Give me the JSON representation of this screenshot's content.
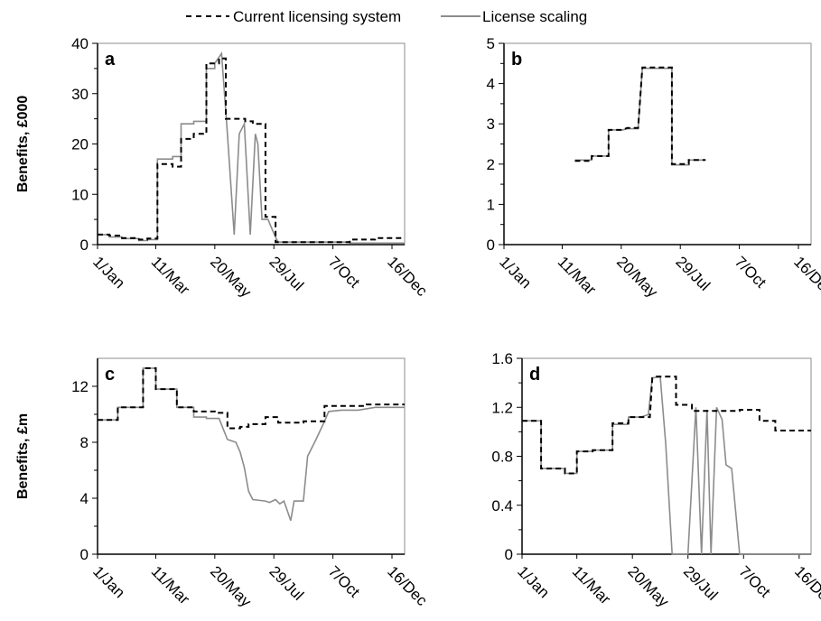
{
  "legend": {
    "current_label": "Current licensing system",
    "scaling_label": "License scaling"
  },
  "colors": {
    "current": "#000000",
    "scaling": "#8c8c8c",
    "axis": "#000000"
  },
  "chart_data": [
    {
      "type": "line",
      "panel": "a",
      "ylabel": "Benefits, £000",
      "xlabel": "",
      "xlim": [
        1,
        365
      ],
      "ylim": [
        0,
        40
      ],
      "yticks": [
        0,
        10,
        20,
        30,
        40
      ],
      "ytick_labels": [
        "0",
        "10",
        "20",
        "30",
        "40"
      ],
      "xticks": [
        1,
        70,
        140,
        210,
        280,
        350
      ],
      "xtick_labels": [
        "1/Jan",
        "11/Mar",
        "20/May",
        "29/Jul",
        "7/Oct",
        "16/Dec"
      ],
      "grid": false,
      "legend_position": "top",
      "series": [
        {
          "name": "Current licensing system",
          "style": "dashed",
          "x": [
            1,
            15,
            15,
            30,
            30,
            50,
            50,
            60,
            60,
            72,
            72,
            90,
            90,
            100,
            100,
            115,
            115,
            130,
            130,
            145,
            145,
            153,
            153,
            176,
            176,
            185,
            185,
            200,
            200,
            212,
            212,
            230,
            230,
            300,
            300,
            330,
            330,
            365
          ],
          "y": [
            2,
            2,
            1.8,
            1.8,
            1.3,
            1.3,
            1,
            1,
            1.2,
            1.2,
            16,
            16,
            15.5,
            15.5,
            21,
            21,
            22,
            22,
            36,
            36,
            37,
            37,
            25,
            25,
            24.5,
            24.5,
            24,
            24,
            5.5,
            5.5,
            0.5,
            0.5,
            0.5,
            0.5,
            1,
            1,
            1.3,
            1.3
          ]
        },
        {
          "name": "License scaling",
          "style": "solid",
          "x": [
            1,
            15,
            15,
            30,
            30,
            50,
            50,
            60,
            60,
            72,
            72,
            90,
            90,
            100,
            100,
            115,
            115,
            130,
            130,
            140,
            140,
            148,
            155,
            163,
            169,
            175,
            182,
            188,
            191,
            196,
            203,
            208,
            212,
            215,
            230,
            300,
            300,
            365
          ],
          "y": [
            2,
            2,
            1.5,
            1.5,
            1.2,
            1.2,
            0.8,
            0.8,
            1,
            1,
            17,
            17,
            17.5,
            17.5,
            24,
            24,
            24.5,
            24.5,
            35,
            35,
            36,
            38,
            22,
            2,
            22,
            24,
            2,
            22,
            20,
            5,
            5,
            3,
            1.5,
            0.5,
            0.5,
            0.5,
            0.3,
            0.3
          ]
        }
      ]
    },
    {
      "type": "line",
      "panel": "b",
      "ylabel": "",
      "xlabel": "",
      "xlim": [
        1,
        365
      ],
      "ylim": [
        0,
        5
      ],
      "yticks": [
        0,
        1,
        2,
        3,
        4,
        5
      ],
      "ytick_labels": [
        "0",
        "1",
        "2",
        "3",
        "4",
        "5"
      ],
      "xticks": [
        1,
        70,
        140,
        210,
        280,
        350
      ],
      "xtick_labels": [
        "1/Jan",
        "11/Mar",
        "20/May",
        "29/Jul",
        "7/Oct",
        "16/Dec"
      ],
      "grid": false,
      "series": [
        {
          "name": "Current licensing system",
          "style": "dashed",
          "x": [
            85,
            105,
            105,
            125,
            125,
            142,
            147,
            160,
            165,
            180,
            182,
            200,
            200,
            220,
            220,
            240
          ],
          "y": [
            2.08,
            2.08,
            2.2,
            2.2,
            2.85,
            2.85,
            2.9,
            2.9,
            4.4,
            4.4,
            4.4,
            4.4,
            2,
            2,
            2.1,
            2.1
          ]
        },
        {
          "name": "License scaling",
          "style": "solid",
          "x": [
            85,
            105,
            105,
            125,
            125,
            142,
            147,
            160,
            165,
            180,
            182,
            200,
            200,
            220,
            220,
            240
          ],
          "y": [
            2.1,
            2.1,
            2.2,
            2.2,
            2.85,
            2.85,
            2.88,
            2.88,
            4.38,
            4.38,
            4.38,
            4.38,
            1.98,
            1.98,
            2.1,
            2.1
          ]
        }
      ]
    },
    {
      "type": "line",
      "panel": "c",
      "ylabel": "Benefits, £m",
      "xlabel": "",
      "xlim": [
        1,
        365
      ],
      "ylim": [
        0,
        14
      ],
      "yticks": [
        0,
        4,
        8,
        12
      ],
      "ytick_labels": [
        "0",
        "4",
        "8",
        "12"
      ],
      "xticks": [
        1,
        70,
        140,
        210,
        280,
        350
      ],
      "xtick_labels": [
        "1/Jan",
        "11/Mar",
        "20/May",
        "29/Jul",
        "7/Oct",
        "16/Dec"
      ],
      "grid": false,
      "series": [
        {
          "name": "Current licensing system",
          "style": "dashed",
          "x": [
            1,
            25,
            25,
            45,
            45,
            55,
            55,
            70,
            70,
            95,
            95,
            115,
            115,
            140,
            140,
            155,
            155,
            170,
            170,
            180,
            180,
            200,
            200,
            215,
            215,
            245,
            245,
            270,
            270,
            300,
            300,
            320,
            320,
            365
          ],
          "y": [
            9.6,
            9.6,
            10.5,
            10.5,
            10.5,
            10.5,
            13.3,
            13.3,
            11.8,
            11.8,
            10.5,
            10.5,
            10.2,
            10.2,
            10.1,
            10.1,
            9,
            9,
            9.1,
            9.1,
            9.3,
            9.3,
            9.8,
            9.8,
            9.4,
            9.4,
            9.5,
            9.5,
            10.6,
            10.6,
            10.6,
            10.6,
            10.7,
            10.7
          ]
        },
        {
          "name": "License scaling",
          "style": "solid",
          "x": [
            1,
            25,
            25,
            45,
            45,
            55,
            55,
            70,
            70,
            95,
            95,
            115,
            115,
            130,
            130,
            145,
            155,
            165,
            170,
            175,
            180,
            185,
            200,
            205,
            212,
            217,
            222,
            230,
            234,
            240,
            245,
            250,
            260,
            270,
            275,
            290,
            310,
            330,
            350,
            365
          ],
          "y": [
            9.6,
            9.6,
            10.5,
            10.5,
            10.5,
            10.5,
            13.3,
            13.3,
            11.8,
            11.8,
            10.5,
            10.5,
            9.8,
            9.8,
            9.7,
            9.7,
            8.2,
            8,
            7.3,
            6.2,
            4.5,
            3.9,
            3.8,
            3.7,
            3.9,
            3.6,
            3.8,
            2.4,
            3.8,
            3.8,
            3.8,
            7,
            8.2,
            9.5,
            10.2,
            10.3,
            10.3,
            10.5,
            10.5,
            10.5
          ]
        }
      ]
    },
    {
      "type": "line",
      "panel": "d",
      "ylabel": "",
      "xlabel": "",
      "xlim": [
        1,
        365
      ],
      "ylim": [
        0,
        1.6
      ],
      "yticks": [
        0,
        0.4,
        0.8,
        1.2,
        1.6
      ],
      "ytick_labels": [
        "0",
        "0.4",
        "0.8",
        "1.2",
        "1.6"
      ],
      "xticks": [
        1,
        70,
        140,
        210,
        280,
        350
      ],
      "xtick_labels": [
        "1/Jan",
        "11/Mar",
        "20/May",
        "29/Jul",
        "7/Oct",
        "16/Dec"
      ],
      "grid": false,
      "series": [
        {
          "name": "Current licensing system",
          "style": "dashed",
          "x": [
            1,
            25,
            25,
            45,
            45,
            55,
            55,
            70,
            70,
            90,
            90,
            115,
            115,
            135,
            135,
            150,
            150,
            162,
            165,
            170,
            170,
            195,
            195,
            215,
            215,
            250,
            250,
            275,
            275,
            300,
            300,
            320,
            320,
            365
          ],
          "y": [
            1.09,
            1.09,
            0.7,
            0.7,
            0.7,
            0.7,
            0.66,
            0.66,
            0.84,
            0.84,
            0.85,
            0.85,
            1.07,
            1.07,
            1.12,
            1.12,
            1.12,
            1.12,
            1.44,
            1.45,
            1.45,
            1.45,
            1.22,
            1.22,
            1.17,
            1.17,
            1.17,
            1.17,
            1.18,
            1.18,
            1.09,
            1.09,
            1.01,
            1.01
          ]
        },
        {
          "name": "License scaling",
          "style": "solid",
          "x": [
            1,
            25,
            25,
            45,
            45,
            55,
            55,
            70,
            70,
            90,
            90,
            115,
            115,
            135,
            135,
            150,
            160,
            165,
            175,
            182,
            190,
            198,
            210,
            220,
            227,
            234,
            239,
            246,
            253,
            258,
            265,
            275,
            278,
            365
          ],
          "y": [
            1.09,
            1.09,
            0.7,
            0.7,
            0.7,
            0.7,
            0.66,
            0.66,
            0.84,
            0.84,
            0.85,
            0.85,
            1.06,
            1.06,
            1.12,
            1.12,
            1.14,
            1.44,
            1.45,
            0.9,
            0,
            0,
            0,
            1.2,
            0,
            1.18,
            0,
            1.2,
            1.1,
            0.73,
            0.7,
            0,
            0,
            0
          ]
        }
      ]
    }
  ]
}
